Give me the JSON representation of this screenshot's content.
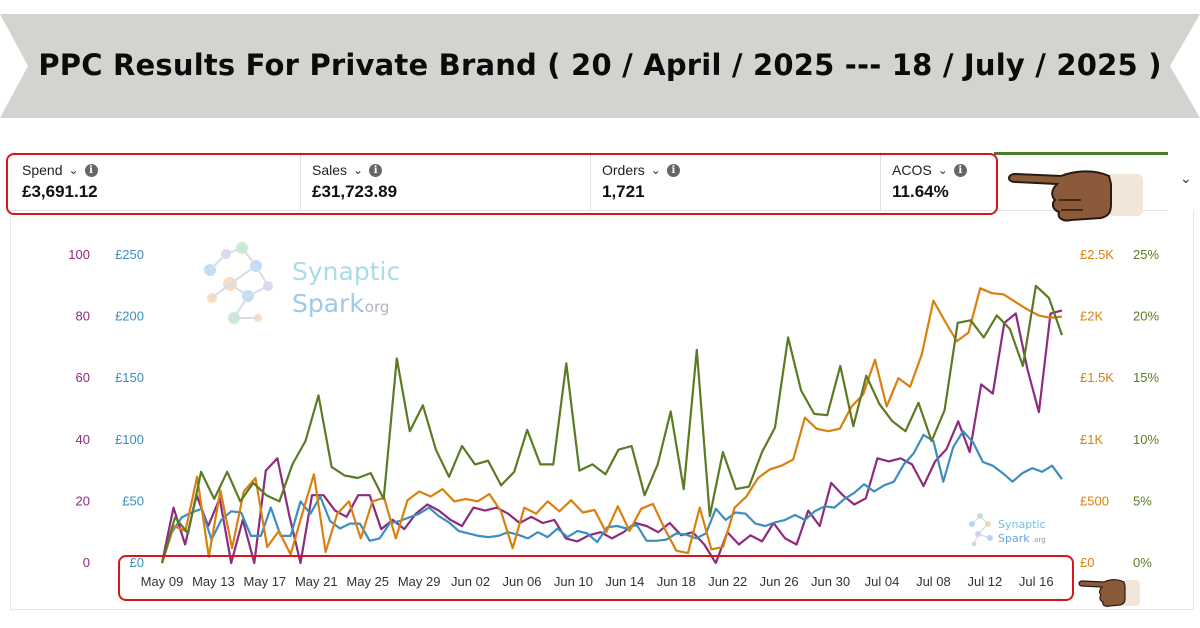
{
  "banner": {
    "title": "PPC Results For Private Brand  ( 20 / April / 2025 ---  18 / July / 2025 )"
  },
  "metrics": [
    {
      "label": "Spend",
      "value": "£3,691.12"
    },
    {
      "label": "Sales",
      "value": "£31,723.89"
    },
    {
      "label": "Orders",
      "value": "1,721"
    },
    {
      "label": "ACOS",
      "value": "11.64%"
    }
  ],
  "watermark": {
    "line1": "Synaptic",
    "line2": "Spark",
    "suffix": ".org"
  },
  "colors": {
    "orders": "#8e2b7e",
    "spend": "#3a8fbf",
    "sales": "#d9800f",
    "acos": "#5c7a24",
    "banner": "#d3d3d0",
    "highlight": "#d8141c"
  },
  "chart_data": {
    "type": "line",
    "x_tick_labels": [
      "May 09",
      "May 13",
      "May 17",
      "May 21",
      "May 25",
      "May 29",
      "Jun 02",
      "Jun 06",
      "Jun 10",
      "Jun 14",
      "Jun 18",
      "Jun 22",
      "Jun 26",
      "Jun 30",
      "Jul 04",
      "Jul 08",
      "Jul 12",
      "Jul 16"
    ],
    "x_range": [
      "May 09",
      "Jul 19"
    ],
    "axes": {
      "orders": {
        "ticks": [
          "0",
          "20",
          "40",
          "60",
          "80",
          "100"
        ],
        "range": [
          0,
          100
        ]
      },
      "spend": {
        "ticks": [
          "£0",
          "£50",
          "£100",
          "£150",
          "£200",
          "£250"
        ],
        "range": [
          0,
          250
        ]
      },
      "sales": {
        "ticks": [
          "£0",
          "£500",
          "£1K",
          "£1.5K",
          "£2K",
          "£2.5K"
        ],
        "range": [
          0,
          2500
        ]
      },
      "acos": {
        "ticks": [
          "0%",
          "5%",
          "10%",
          "15%",
          "20%",
          "25%"
        ],
        "range": [
          0,
          25
        ]
      }
    },
    "grid": false,
    "legend": "none",
    "series": [
      {
        "key": "orders",
        "axis": "orders",
        "values": [
          0,
          18,
          6,
          22,
          12,
          21,
          0,
          14,
          0,
          30,
          34,
          16,
          0,
          22,
          22,
          17,
          15,
          22,
          22,
          11,
          14,
          11,
          16,
          19,
          17,
          14,
          12,
          18,
          17,
          18,
          16,
          13,
          15,
          13,
          14,
          8,
          7,
          9,
          10,
          8,
          10,
          13,
          12,
          10,
          13,
          9,
          10,
          6,
          0,
          10,
          6,
          9,
          7,
          13,
          8,
          6,
          17,
          12,
          26,
          22,
          19,
          21,
          34,
          33,
          34,
          32,
          25,
          33,
          37,
          46,
          36,
          58,
          55,
          78,
          81,
          63,
          49,
          81,
          82
        ]
      },
      {
        "key": "spend",
        "axis": "spend",
        "values": [
          0,
          25,
          37,
          41,
          44,
          19,
          35,
          42,
          41,
          22,
          22,
          45,
          22,
          22,
          50,
          40,
          54,
          34,
          28,
          32,
          32,
          18,
          20,
          32,
          34,
          37,
          40,
          45,
          38,
          33,
          26,
          24,
          22,
          21,
          22,
          25,
          23,
          20,
          25,
          21,
          28,
          21,
          26,
          24,
          17,
          29,
          30,
          28,
          31,
          18,
          18,
          19,
          24,
          23,
          20,
          24,
          44,
          35,
          41,
          40,
          32,
          30,
          33,
          35,
          39,
          35,
          42,
          46,
          45,
          52,
          57,
          64,
          58,
          63,
          66,
          80,
          89,
          104,
          99,
          66,
          94,
          107,
          98,
          82,
          79,
          73,
          66,
          73,
          77,
          74,
          79,
          68
        ]
      },
      {
        "key": "sales",
        "axis": "sales",
        "values": [
          0,
          300,
          260,
          700,
          50,
          590,
          120,
          580,
          690,
          130,
          260,
          70,
          400,
          720,
          90,
          400,
          500,
          200,
          500,
          530,
          200,
          510,
          580,
          540,
          600,
          500,
          520,
          500,
          560,
          420,
          120,
          450,
          400,
          500,
          420,
          510,
          410,
          430,
          250,
          460,
          260,
          440,
          480,
          280,
          100,
          80,
          450,
          110,
          130,
          450,
          540,
          690,
          760,
          790,
          840,
          1180,
          1090,
          1070,
          1090,
          1270,
          1370,
          1650,
          1270,
          1500,
          1430,
          1690,
          2130,
          1960,
          1800,
          1870,
          2230,
          2190,
          2180,
          2120,
          2060,
          2010,
          1990,
          2000
        ]
      },
      {
        "key": "acos",
        "axis": "acos",
        "values": [
          0,
          3.7,
          2.4,
          7.4,
          5.2,
          7.4,
          5.0,
          6.5,
          5.5,
          5.0,
          8.0,
          9.9,
          13.6,
          7.8,
          7.1,
          6.9,
          7.3,
          5.2,
          16.6,
          10.7,
          12.8,
          9.2,
          7.0,
          9.5,
          8.0,
          8.3,
          6.3,
          7.4,
          10.8,
          8.0,
          8.0,
          16.2,
          7.5,
          8.0,
          7.2,
          9.2,
          9.5,
          5.5,
          8.0,
          12.3,
          6.0,
          17.3,
          3.8,
          9.0,
          6.0,
          6.2,
          9.0,
          11.0,
          18.3,
          14.0,
          12.1,
          12.0,
          16.0,
          11.1,
          15.2,
          12.9,
          11.5,
          10.7,
          13.0,
          9.9,
          12.4,
          19.5,
          19.7,
          18.3,
          20.1,
          19.0,
          16.0,
          22.5,
          21.5,
          18.5
        ]
      }
    ]
  }
}
